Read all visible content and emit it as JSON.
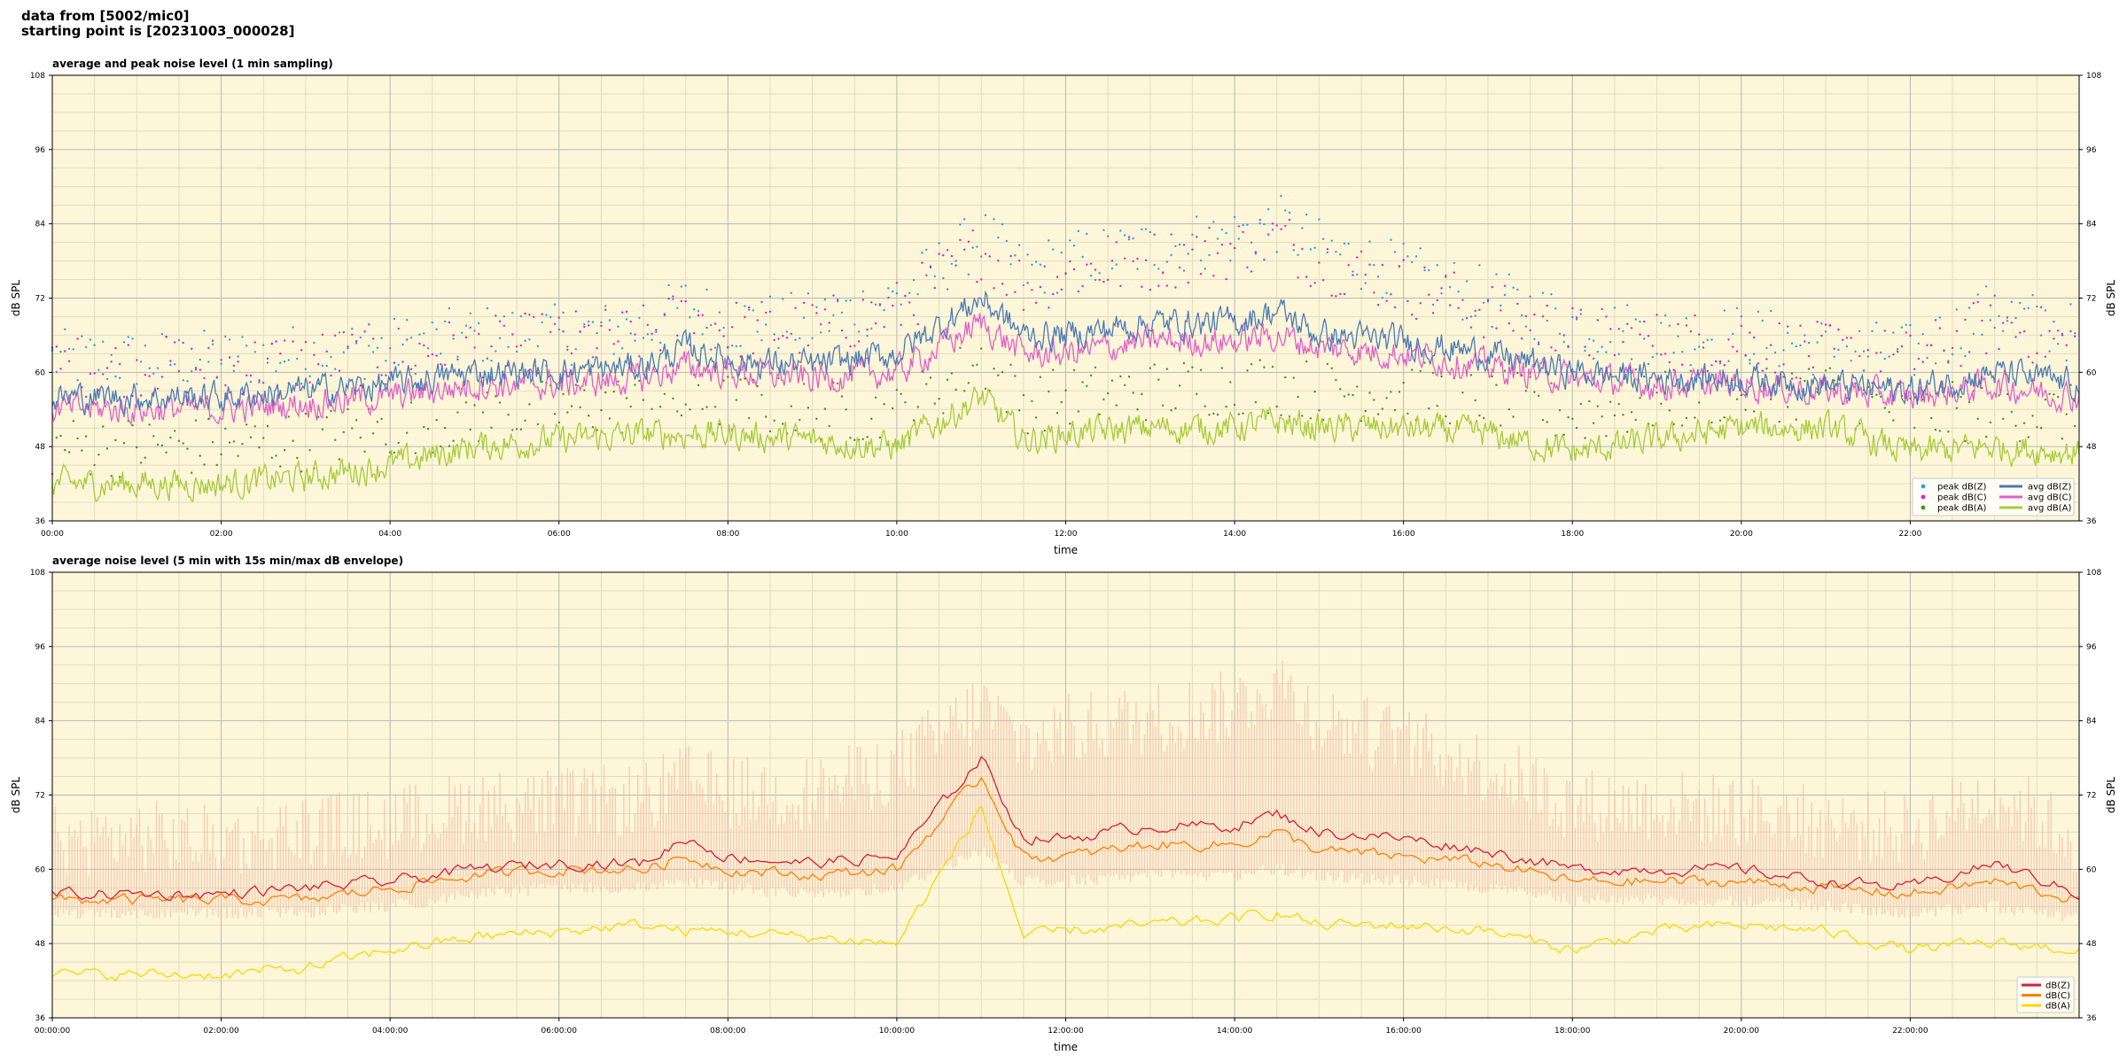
{
  "header": {
    "line1": "data from [5002/mic0]",
    "line2": "starting point is [20231003_000028]"
  },
  "colors": {
    "background": "#fdf6d8",
    "grid_major": "#b8b8b8",
    "grid_minor": "#e4dcc0",
    "dBZ_avg": "#4b7bb5",
    "dBZ_peak": "#2aa0e0",
    "dBC_avg": "#e060c8",
    "dBC_peak": "#e020c0",
    "dBA_avg": "#a6cc3a",
    "dBA_peak": "#4a8a2a",
    "env_Z": "#d41f3c",
    "env_C": "#ff8000",
    "env_A": "#ffd600",
    "env_band": "#f4b0a0"
  },
  "chart_data": [
    {
      "type": "line",
      "title": "average and peak noise level (1 min sampling)",
      "xlabel": "time",
      "ylabel": "dB SPL",
      "ylim": [
        36,
        108
      ],
      "yticks": [
        "36",
        "48",
        "60",
        "72",
        "84",
        "96",
        "108"
      ],
      "xlim_hours": [
        0,
        24
      ],
      "xticks": [
        "00:00",
        "02:00",
        "04:00",
        "06:00",
        "08:00",
        "10:00",
        "12:00",
        "14:00",
        "16:00",
        "18:00",
        "20:00",
        "22:00"
      ],
      "grid": true,
      "legend_position": "bottom-right",
      "legend": [
        "peak dB(Z)",
        "peak dB(C)",
        "peak dB(A)",
        "avg dB(Z)",
        "avg dB(C)",
        "avg dB(A)"
      ],
      "x_hours": [
        0,
        1,
        2,
        3,
        4,
        5,
        6,
        7,
        7.5,
        8,
        9,
        10,
        11,
        11.5,
        12,
        13,
        14,
        14.5,
        15,
        16,
        17,
        18,
        19,
        20,
        21,
        22,
        23,
        24
      ],
      "series": [
        {
          "name": "avg dB(Z)",
          "values": [
            56,
            56,
            56,
            57,
            58,
            60,
            60,
            61,
            64,
            62,
            61,
            63,
            72,
            66,
            66,
            68,
            68,
            70,
            66,
            65,
            63,
            60,
            59,
            59,
            58,
            57,
            60,
            58
          ]
        },
        {
          "name": "avg dB(C)",
          "values": [
            54,
            54,
            54,
            55,
            56,
            58,
            58,
            59,
            61,
            60,
            59,
            60,
            68,
            63,
            63,
            65,
            65,
            66,
            64,
            63,
            61,
            59,
            58,
            58,
            57,
            56,
            58,
            56
          ]
        },
        {
          "name": "avg dB(A)",
          "values": [
            42,
            42,
            42,
            43,
            45,
            48,
            49,
            50,
            50,
            50,
            49,
            48,
            56,
            49,
            50,
            51,
            51,
            52,
            51,
            51,
            50,
            47,
            49,
            51,
            51,
            47,
            48,
            47
          ]
        },
        {
          "name": "peak dB(Z)",
          "values": [
            62,
            62,
            62,
            63,
            64,
            66,
            66,
            67,
            71,
            68,
            68,
            72,
            82,
            76,
            78,
            80,
            82,
            84,
            80,
            76,
            72,
            68,
            66,
            66,
            64,
            63,
            70,
            66
          ]
        },
        {
          "name": "peak dB(C)",
          "values": [
            61,
            61,
            61,
            62,
            63,
            64,
            65,
            66,
            69,
            67,
            67,
            70,
            80,
            74,
            76,
            78,
            80,
            82,
            78,
            74,
            70,
            66,
            65,
            65,
            63,
            62,
            68,
            64
          ]
        },
        {
          "name": "peak dB(A)",
          "values": [
            48,
            48,
            48,
            49,
            51,
            53,
            54,
            55,
            55,
            55,
            54,
            53,
            62,
            55,
            56,
            57,
            58,
            58,
            57,
            57,
            56,
            53,
            55,
            57,
            57,
            53,
            54,
            53
          ]
        }
      ]
    },
    {
      "type": "line",
      "title": "average noise level (5 min with 15s min/max dB envelope)",
      "xlabel": "time",
      "ylabel": "dB SPL",
      "ylim": [
        36,
        108
      ],
      "yticks": [
        "36",
        "48",
        "60",
        "72",
        "84",
        "96",
        "108"
      ],
      "xlim_hours": [
        0,
        24
      ],
      "xticks": [
        "00:00:00",
        "02:00:00",
        "04:00:00",
        "06:00:00",
        "08:00:00",
        "10:00:00",
        "12:00:00",
        "14:00:00",
        "16:00:00",
        "18:00:00",
        "20:00:00",
        "22:00:00"
      ],
      "grid": true,
      "legend_position": "bottom-right",
      "legend": [
        "dB(Z)",
        "dB(C)",
        "dB(A)"
      ],
      "x_hours": [
        0,
        1,
        2,
        3,
        4,
        5,
        6,
        7,
        7.5,
        8,
        9,
        10,
        11,
        11.5,
        12,
        13,
        14,
        14.5,
        15,
        16,
        17,
        18,
        19,
        20,
        21,
        22,
        23,
        24
      ],
      "series": [
        {
          "name": "dB(Z)",
          "values": [
            56,
            56,
            56,
            57,
            58,
            60,
            61,
            61,
            65,
            62,
            61,
            62,
            78,
            65,
            65,
            67,
            67,
            69,
            66,
            65,
            63,
            60,
            60,
            60,
            58,
            57,
            61,
            56
          ]
        },
        {
          "name": "dB(C)",
          "values": [
            55,
            55,
            55,
            55,
            57,
            59,
            60,
            60,
            62,
            60,
            59,
            60,
            75,
            62,
            62,
            64,
            64,
            66,
            63,
            62,
            61,
            58,
            58,
            58,
            57,
            56,
            58,
            55
          ]
        },
        {
          "name": "dB(A)",
          "values": [
            43,
            43,
            43,
            44,
            47,
            49,
            50,
            51,
            50,
            50,
            49,
            48,
            70,
            49,
            50,
            51,
            52,
            53,
            51,
            51,
            50,
            47,
            50,
            51,
            50,
            47,
            48,
            47
          ]
        },
        {
          "name": "envelope max",
          "values": [
            62,
            63,
            62,
            64,
            65,
            68,
            68,
            69,
            72,
            70,
            70,
            74,
            84,
            78,
            80,
            82,
            84,
            88,
            82,
            78,
            74,
            68,
            68,
            67,
            65,
            64,
            70,
            62
          ]
        },
        {
          "name": "envelope min",
          "values": [
            54,
            54,
            54,
            54,
            55,
            57,
            58,
            58,
            59,
            58,
            57,
            58,
            64,
            59,
            59,
            60,
            60,
            61,
            60,
            59,
            58,
            56,
            56,
            56,
            55,
            54,
            55,
            53
          ]
        }
      ]
    }
  ]
}
